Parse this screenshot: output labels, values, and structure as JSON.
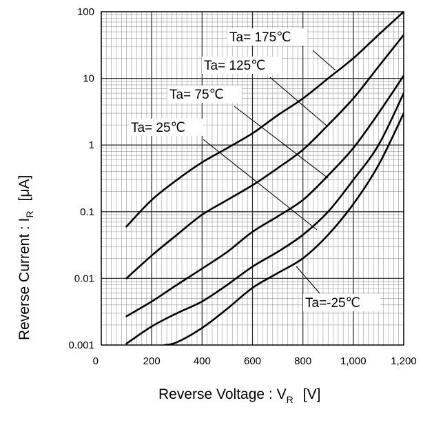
{
  "chart_data": {
    "type": "line",
    "x_scale": "linear",
    "y_scale": "log",
    "xlim": [
      0,
      1200
    ],
    "ylim": [
      0.001,
      100
    ],
    "grid": true,
    "x_ticks": [
      "0",
      "200",
      "400",
      "600",
      "800",
      "1,000",
      "1,200"
    ],
    "y_ticks": [
      "0.001",
      "0.01",
      "0.1",
      "1",
      "10",
      "100"
    ],
    "xlabel": {
      "main": "Reverse Voltage : V",
      "sub": "R",
      "unit": "[V]"
    },
    "ylabel": {
      "main": "Reverse Current : I",
      "sub": "R",
      "unit": "[μA]"
    },
    "series": [
      {
        "name": "Ta= 175℃",
        "x": [
          100,
          200,
          300,
          400,
          500,
          600,
          700,
          800,
          900,
          1000,
          1100,
          1200
        ],
        "y": [
          0.06,
          0.15,
          0.3,
          0.55,
          0.9,
          1.5,
          2.8,
          5,
          10,
          20,
          45,
          100
        ]
      },
      {
        "name": "Ta= 125℃",
        "x": [
          100,
          200,
          300,
          400,
          500,
          600,
          700,
          800,
          900,
          1000,
          1100,
          1200
        ],
        "y": [
          0.01,
          0.022,
          0.045,
          0.09,
          0.15,
          0.25,
          0.45,
          0.85,
          2,
          5,
          15,
          45
        ]
      },
      {
        "name": "Ta= 75℃",
        "x": [
          100,
          200,
          300,
          400,
          500,
          600,
          700,
          800,
          900,
          1000,
          1100,
          1200
        ],
        "y": [
          0.0027,
          0.0045,
          0.008,
          0.014,
          0.025,
          0.05,
          0.085,
          0.15,
          0.35,
          0.9,
          3,
          11
        ]
      },
      {
        "name": "Ta= 25℃",
        "x": [
          100,
          200,
          300,
          400,
          500,
          600,
          700,
          800,
          900,
          1000,
          1100,
          1200
        ],
        "y": [
          0.00105,
          0.0019,
          0.003,
          0.0045,
          0.008,
          0.015,
          0.025,
          0.045,
          0.1,
          0.3,
          1,
          6
        ]
      },
      {
        "name": "Ta=-25℃",
        "x": [
          250,
          300,
          400,
          500,
          600,
          700,
          800,
          900,
          1000,
          1100,
          1200
        ],
        "y": [
          0.001,
          0.0011,
          0.0018,
          0.0035,
          0.0072,
          0.012,
          0.02,
          0.045,
          0.13,
          0.5,
          3
        ]
      }
    ]
  }
}
